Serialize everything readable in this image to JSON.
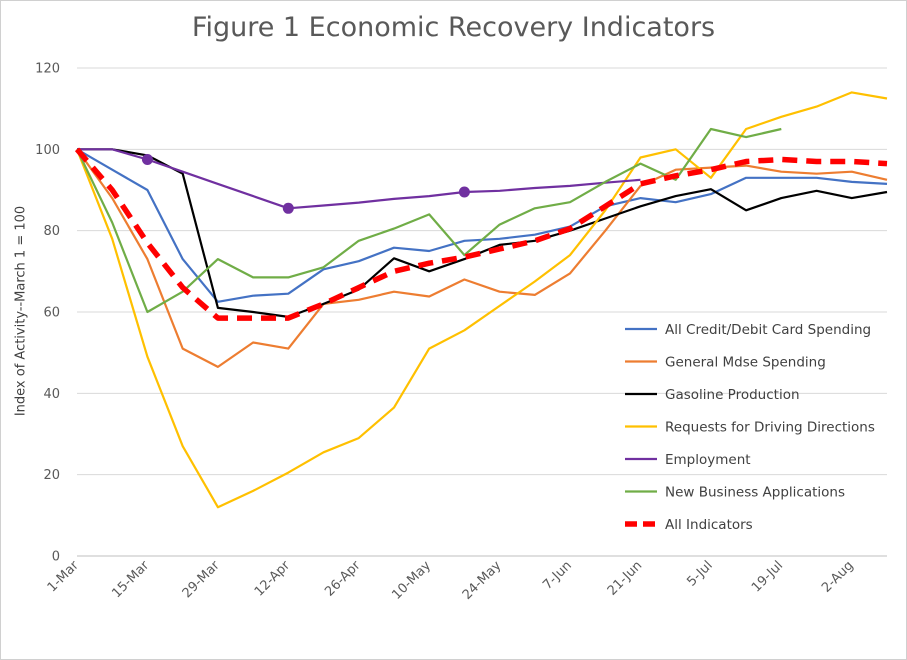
{
  "chart_data": {
    "type": "line",
    "title": "Figure 1 Economic Recovery Indicators",
    "xlabel": "",
    "ylabel": "Index of Activity--March  1 = 100",
    "ylim": [
      0,
      120
    ],
    "yticks": [
      0,
      20,
      40,
      60,
      80,
      100,
      120
    ],
    "xtick_labels": [
      "1-Mar",
      "15-Mar",
      "29-Mar",
      "12-Apr",
      "26-Apr",
      "10-May",
      "24-May",
      "7-Jun",
      "21-Jun",
      "5-Jul",
      "19-Jul",
      "2-Aug"
    ],
    "grid": "horizontal",
    "legend_position": "right",
    "series": [
      {
        "name": "All Credit/Debit Card Spending",
        "color": "#4472C4",
        "values": [
          100,
          95,
          90,
          73,
          62.5,
          64,
          64.5,
          70.5,
          72.5,
          75.8,
          75,
          77.5,
          78,
          79,
          81,
          86,
          88,
          87,
          89,
          93,
          93,
          93,
          92,
          91.5
        ]
      },
      {
        "name": "General Mdse Spending",
        "color": "#ED7D31",
        "values": [
          100,
          88,
          73,
          51,
          46.5,
          52.5,
          51,
          62,
          63,
          65,
          63.8,
          68,
          65,
          64.2,
          69.5,
          80,
          91,
          95,
          95.5,
          96,
          94.5,
          94,
          94.5,
          92.5
        ]
      },
      {
        "name": "Gasoline Production",
        "color": "#000000",
        "values": [
          100,
          100,
          98.5,
          94,
          61,
          60,
          58.8,
          62,
          65.5,
          73.2,
          70,
          73,
          76.5,
          77.5,
          80,
          83,
          86,
          88.5,
          90.2,
          85,
          88,
          89.8,
          88,
          89.5
        ]
      },
      {
        "name": "Requests for Driving Directions",
        "color": "#FFC000",
        "values": [
          100,
          78,
          49,
          27,
          12,
          16,
          20.5,
          25.5,
          29,
          36.5,
          51,
          55.5,
          61.5,
          67.5,
          74,
          85,
          98,
          100,
          93,
          105,
          108,
          110.5,
          114,
          112.5
        ]
      },
      {
        "name": "Employment",
        "color": "#7030A0",
        "markers_at": [
          2,
          6,
          11
        ],
        "values": [
          100,
          100,
          97.5,
          94.5,
          91.5,
          88.5,
          85.5,
          86.2,
          86.9,
          87.8,
          88.5,
          89.5,
          89.8,
          90.5,
          91,
          91.8,
          92.5,
          null,
          null,
          null,
          null,
          null,
          null,
          null
        ]
      },
      {
        "name": "New Business Applications",
        "color": "#70AD47",
        "values": [
          100,
          82,
          60,
          65,
          73,
          68.5,
          68.5,
          71,
          77.5,
          80.5,
          84,
          74,
          81.5,
          85.5,
          87,
          92,
          96.5,
          92.5,
          105,
          103,
          105,
          null,
          null,
          null
        ]
      },
      {
        "name": "All Indicators",
        "color": "#FF0000",
        "dashed": true,
        "values": [
          100,
          90,
          77,
          66,
          58.5,
          58.5,
          58.5,
          62,
          66,
          70,
          72,
          73.5,
          75.5,
          77.5,
          80.5,
          86,
          91.5,
          93.5,
          95,
          97,
          97.5,
          97,
          97,
          96.5
        ]
      }
    ]
  }
}
